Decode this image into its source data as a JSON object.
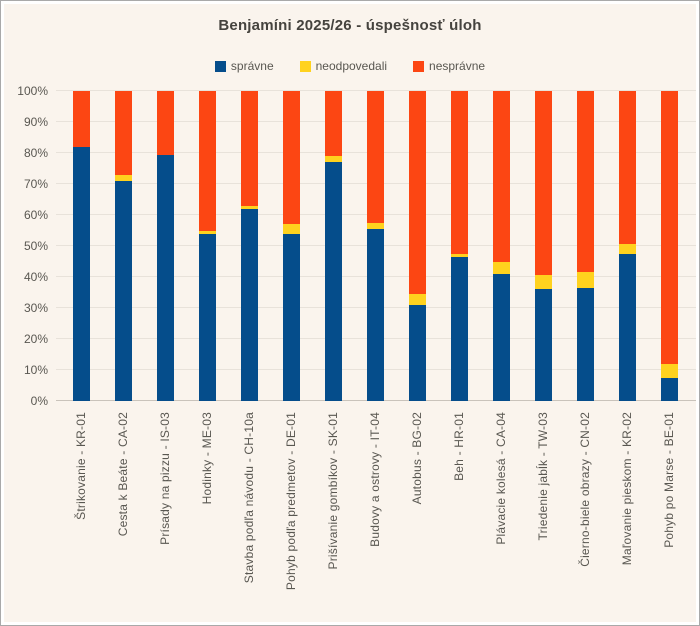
{
  "frame": {
    "background_color": "#faf4ed",
    "border_color": "#a9a9a9"
  },
  "chart_data": {
    "type": "bar",
    "stacked": true,
    "orientation": "vertical",
    "title": "Benjamíni 2025/26 - úspešnosť úloh",
    "xlabel": "",
    "ylabel": "",
    "ylim": [
      0,
      100
    ],
    "ytick_step": 10,
    "ytick_labels": [
      "0%",
      "10%",
      "20%",
      "30%",
      "40%",
      "50%",
      "60%",
      "70%",
      "80%",
      "90%",
      "100%"
    ],
    "grid": true,
    "legend_position": "top",
    "categories": [
      "Štrikovanie - KR-01",
      "Cesta k Beáte - CA-02",
      "Prísady na pizzu - IS-03",
      "Hodinky - ME-03",
      "Stavba podľa návodu - CH-10a",
      "Pohyb podľa predmetov - DE-01",
      "Prišívanie gombíkov - SK-01",
      "Budovy a ostrovy - IT-04",
      "Autobus - BG-02",
      "Beh - HR-01",
      "Plávacie kolesá - CA-04",
      "Triedenie jabĺk - TW-03",
      "Čierno-biele obrazy - CN-02",
      "Maľovanie pieskom - KR-02",
      "Pohyb po Marse - BE-01"
    ],
    "series": [
      {
        "name": "správne",
        "color": "#054d8b",
        "values": [
          82,
          71,
          79.5,
          54,
          62,
          54,
          77,
          55.5,
          31,
          46.5,
          41,
          36,
          36.5,
          47.5,
          7.5
        ]
      },
      {
        "name": "neodpovedali",
        "color": "#ffd21e",
        "values": [
          0,
          2,
          0,
          1,
          1,
          3,
          2,
          2,
          3.5,
          1,
          4,
          4.5,
          5,
          3,
          4.5
        ]
      },
      {
        "name": "nesprávne",
        "color": "#fc4613",
        "values": [
          18,
          27,
          20.5,
          45,
          37,
          43,
          21,
          42.5,
          65.5,
          52.5,
          55,
          59.5,
          58.5,
          49.5,
          88
        ]
      }
    ]
  }
}
